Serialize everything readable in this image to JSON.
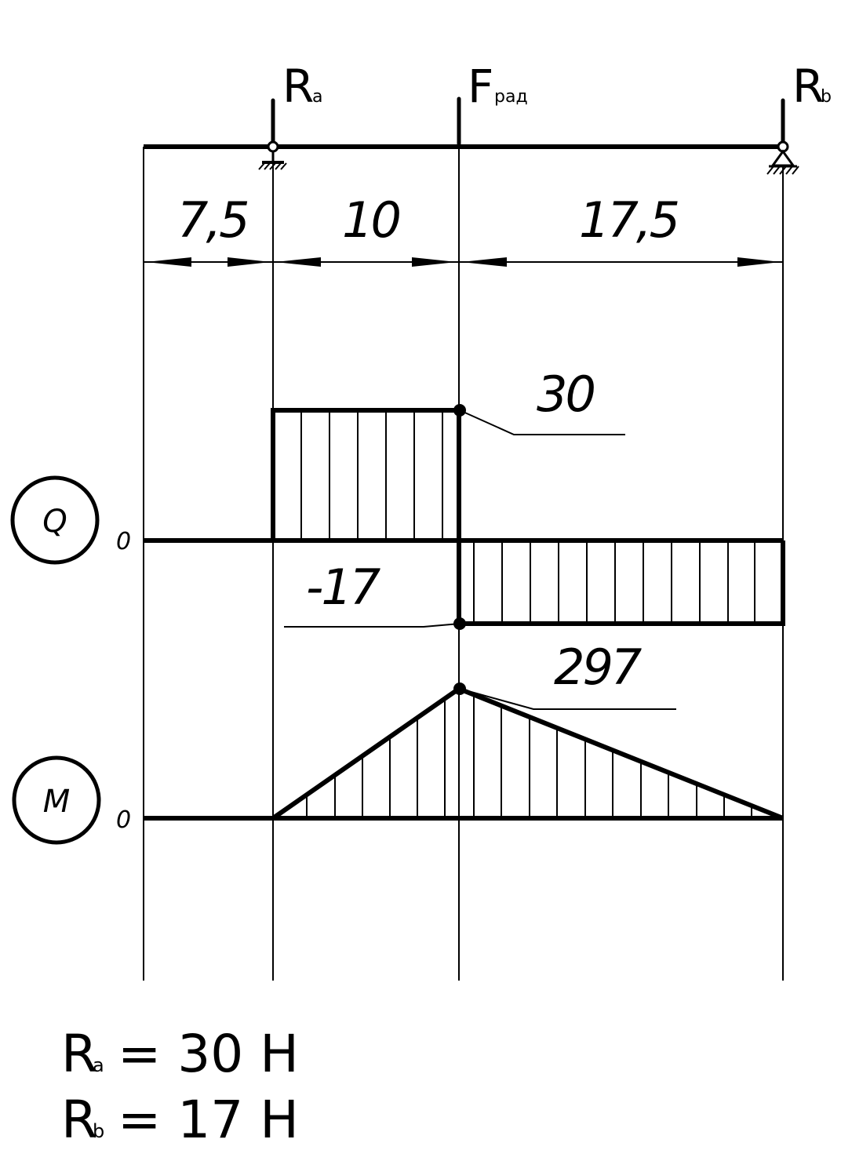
{
  "forces": {
    "ra": {
      "main": "R",
      "sub": "a"
    },
    "frad": {
      "main": "F",
      "sub": "рад"
    },
    "rb": {
      "main": "R",
      "sub": "b"
    }
  },
  "dimensions": {
    "d1": "7,5",
    "d2": "10",
    "d3": "17,5"
  },
  "shear_diagram": {
    "label": "Q",
    "zero_label": "0",
    "values": {
      "max": "30",
      "min": "-17"
    }
  },
  "moment_diagram": {
    "label": "M",
    "zero_label": "0",
    "values": {
      "max": "297"
    }
  },
  "results": {
    "ra": {
      "symbol": "R",
      "sub": "a",
      "text": "= 30 Н"
    },
    "rb": {
      "symbol": "R",
      "sub": "b",
      "text": "= 17 Н"
    }
  },
  "chart_data": {
    "type": "diagram",
    "segments": [
      7.5,
      10,
      17.5
    ],
    "shear_Q": [
      {
        "from": 0,
        "to": 7.5,
        "value": 0
      },
      {
        "from": 7.5,
        "to": 17.5,
        "value": 30
      },
      {
        "from": 17.5,
        "to": 35,
        "value": -17
      }
    ],
    "moment_M": [
      {
        "x": 0,
        "value": 0
      },
      {
        "x": 7.5,
        "value": 0
      },
      {
        "x": 17.5,
        "value": 297
      },
      {
        "x": 35,
        "value": 0
      }
    ]
  }
}
